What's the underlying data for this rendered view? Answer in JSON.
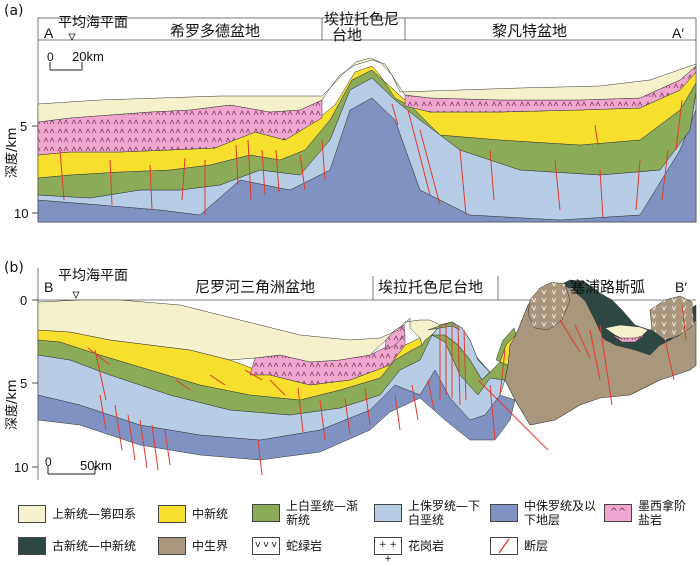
{
  "panels": [
    {
      "letter": "(a)",
      "start_label": "A",
      "end_label": "A′",
      "sea_level_label": "平均海平面",
      "scale_zero": "0",
      "scale_label": "20km",
      "regions": [
        "希罗多德盆地",
        "埃拉托色尼",
        "台地",
        "黎凡特盆地"
      ],
      "y_axis_label": "深度/km",
      "y_ticks": [
        "5",
        "10"
      ]
    },
    {
      "letter": "(b)",
      "start_label": "B",
      "end_label": "B′",
      "sea_level_label": "平均海平面",
      "scale_zero": "0",
      "scale_label": "50km",
      "regions": [
        "尼罗河三角洲盆地",
        "埃拉托色尼台地",
        "塞浦路斯弧"
      ],
      "y_axis_label": "深度/km",
      "y_ticks": [
        "0",
        "5",
        "10"
      ]
    }
  ],
  "colors": {
    "pliocene_quaternary": "#f6f1cd",
    "miocene": "#f7df2e",
    "upper_cretaceous_oligocene": "#8bab58",
    "upper_jurassic_lower_cretaceous": "#b7cde5",
    "middle_jurassic_below": "#7f92c2",
    "messinian_salt": "#efa7cf",
    "paleogene_miocene": "#2d4743",
    "mesozoic": "#a8977c",
    "fault": "#e23a2a"
  },
  "legend": [
    {
      "label": "上新统—第四系",
      "color": "#f6f1cd"
    },
    {
      "label": "中新统",
      "color": "#f7df2e"
    },
    {
      "label": "上白垩统—渐新统",
      "color": "#8bab58"
    },
    {
      "label": "上侏罗统—下白垩统",
      "color": "#b7cde5"
    },
    {
      "label": "中侏罗统及以下地层",
      "color": "#7f92c2"
    },
    {
      "label": "墨西拿阶盐岩",
      "color": "#efa7cf",
      "icon": "salt-hatch-icon"
    },
    {
      "label": "古新统—中新统",
      "color": "#2d4743"
    },
    {
      "label": "中生界",
      "color": "#a8977c"
    },
    {
      "label": "蛇绿岩",
      "color": "#ffffff",
      "icon": "ophiolite-v-icon"
    },
    {
      "label": "花岗岩",
      "color": "#ffffff",
      "icon": "granite-plus-icon"
    },
    {
      "label": "断层",
      "color": "#ffffff",
      "icon": "fault-line-icon"
    }
  ]
}
